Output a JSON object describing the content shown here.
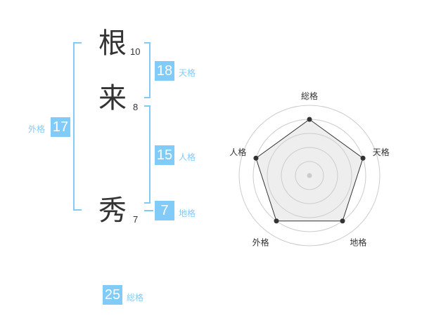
{
  "name": {
    "characters": [
      {
        "char": "根",
        "strokes": "10"
      },
      {
        "char": "来",
        "strokes": "8"
      },
      {
        "char": "秀",
        "strokes": "7"
      }
    ]
  },
  "kaku": {
    "tenkaku": {
      "value": "18",
      "label": "天格"
    },
    "jinkaku": {
      "value": "15",
      "label": "人格"
    },
    "chikaku": {
      "value": "7",
      "label": "地格"
    },
    "gaikaku": {
      "value": "17",
      "label": "外格"
    },
    "soukaku": {
      "value": "25",
      "label": "総格"
    }
  },
  "radar": {
    "axes": [
      "総格",
      "天格",
      "地格",
      "外格",
      "人格"
    ],
    "levels": 5,
    "values": [
      4,
      4,
      4,
      4,
      4
    ],
    "fill_color": "#eeeeee",
    "line_color": "#333333",
    "accent": "#80cbf8"
  }
}
